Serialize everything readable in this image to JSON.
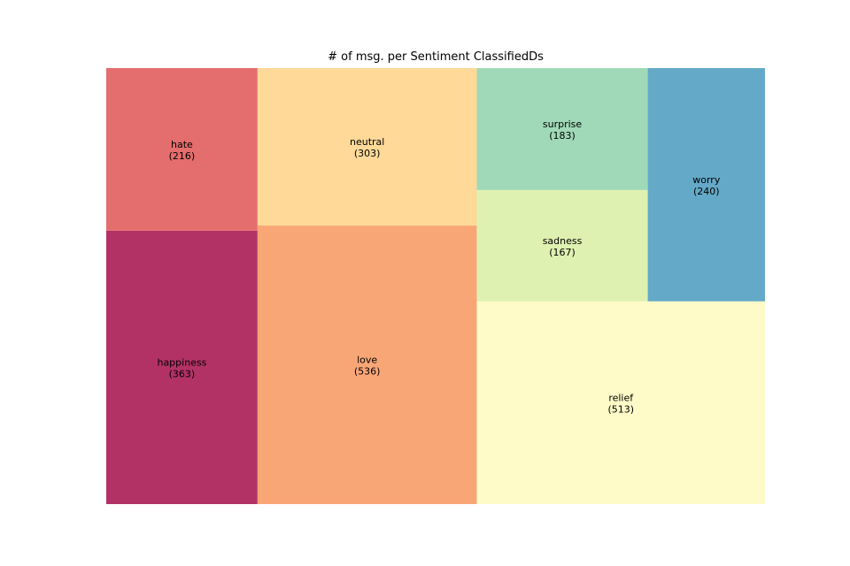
{
  "chart_data": {
    "type": "treemap",
    "title": "# of msg. per Sentiment ClassifiedDs",
    "items": [
      {
        "label": "happiness",
        "value": 363,
        "value_text": "(363)",
        "color": "#b33265"
      },
      {
        "label": "hate",
        "value": 216,
        "value_text": "(216)",
        "color": "#e46d6d"
      },
      {
        "label": "love",
        "value": 536,
        "value_text": "(536)",
        "color": "#f9a676"
      },
      {
        "label": "neutral",
        "value": 303,
        "value_text": "(303)",
        "color": "#fed998"
      },
      {
        "label": "relief",
        "value": 513,
        "value_text": "(513)",
        "color": "#fefbc8"
      },
      {
        "label": "sadness",
        "value": 167,
        "value_text": "(167)",
        "color": "#dff1b1"
      },
      {
        "label": "surprise",
        "value": 183,
        "value_text": "(183)",
        "color": "#a0d9b7"
      },
      {
        "label": "worry",
        "value": 240,
        "value_text": "(240)",
        "color": "#64a9c7"
      }
    ]
  }
}
